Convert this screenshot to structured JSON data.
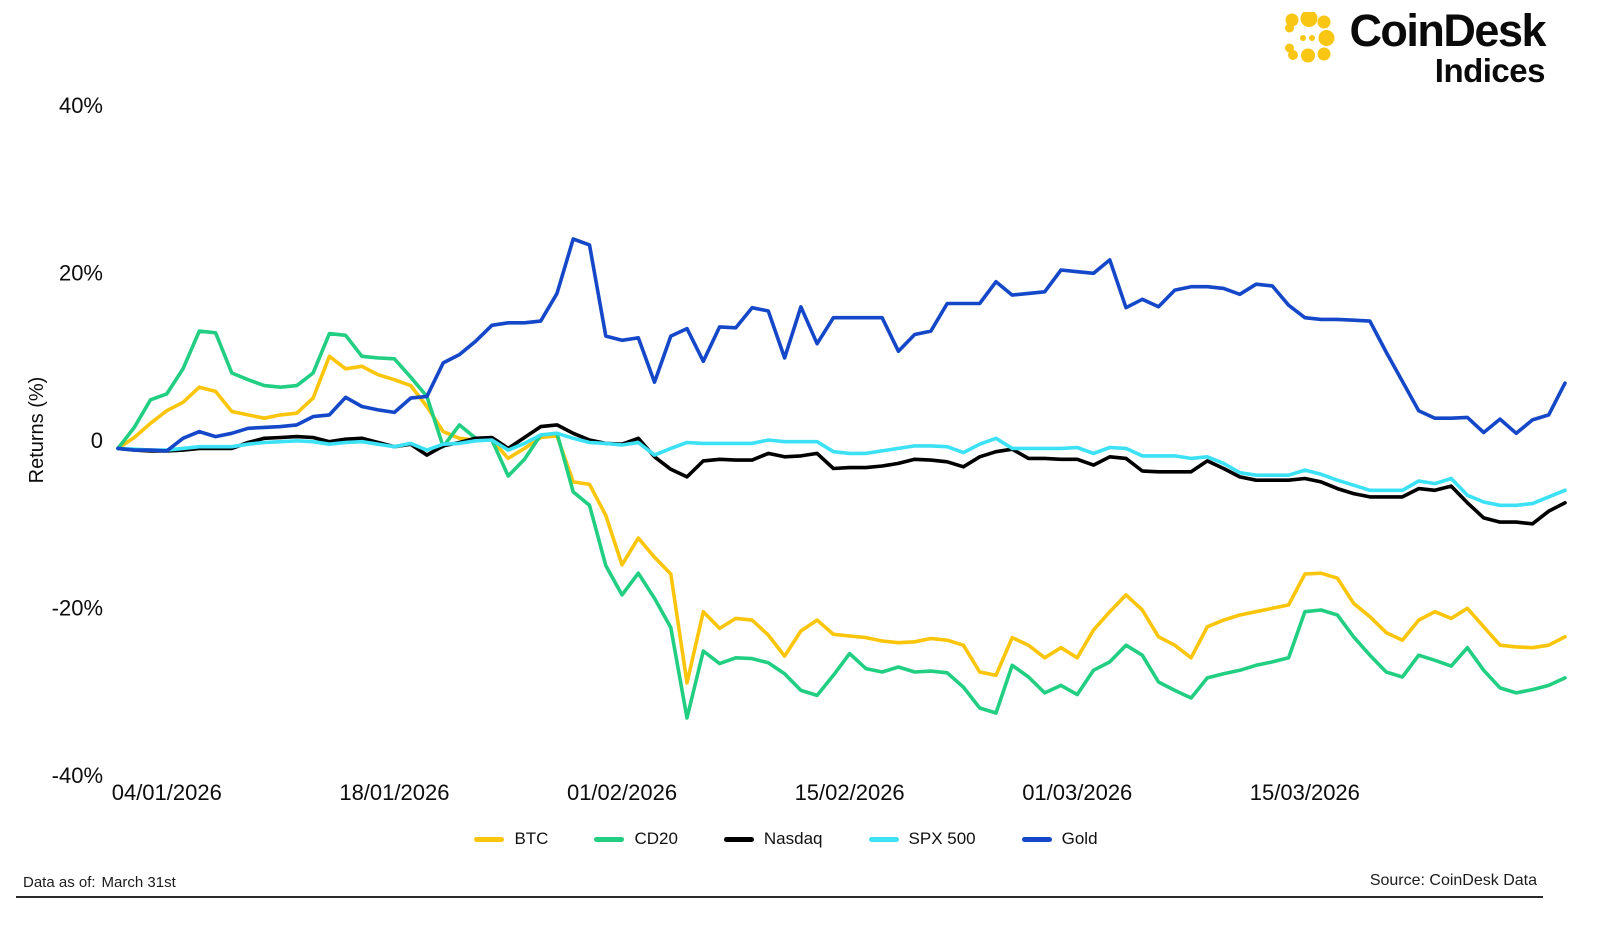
{
  "brand": {
    "name": "CoinDesk",
    "sub": "Indices",
    "logo_color": "#F8C613"
  },
  "footer": {
    "left_label": "Data as of:",
    "left_value": "March 31st",
    "right": "Source: CoinDesk Data"
  },
  "chart_data": {
    "type": "line",
    "title": "",
    "ylabel": "Returns (%)",
    "ylim": [
      -40,
      40
    ],
    "grid": false,
    "legend_position": "bottom",
    "x_start": "01/01/2026",
    "x_end": "31/03/2026",
    "frequency": "daily",
    "y_ticks": [
      {
        "label": "40%",
        "value": 40
      },
      {
        "label": "20%",
        "value": 20
      },
      {
        "label": "0",
        "value": 0
      },
      {
        "label": "-20%",
        "value": -20
      },
      {
        "label": "-40%",
        "value": -40
      }
    ],
    "x_ticks": [
      {
        "label": "04/01/2026",
        "day_index": 3
      },
      {
        "label": "18/01/2026",
        "day_index": 17
      },
      {
        "label": "01/02/2026",
        "day_index": 31
      },
      {
        "label": "15/02/2026",
        "day_index": 45
      },
      {
        "label": "01/03/2026",
        "day_index": 59
      },
      {
        "label": "15/03/2026",
        "day_index": 73
      }
    ],
    "series": [
      {
        "name": "BTC",
        "color": "#FBC50B",
        "values": [
          -1.0,
          0.3,
          2.0,
          3.5,
          4.5,
          6.3,
          5.8,
          3.4,
          3.0,
          2.6,
          3.0,
          3.2,
          5.0,
          10.0,
          8.5,
          8.8,
          7.8,
          7.2,
          6.5,
          4.0,
          1.0,
          0.2,
          0.0,
          0.0,
          -2.2,
          -1.0,
          0.3,
          0.5,
          -5.0,
          -5.3,
          -9.0,
          -14.9,
          -11.7,
          -14.0,
          -16.0,
          -29.0,
          -20.5,
          -22.5,
          -21.3,
          -21.5,
          -23.3,
          -25.8,
          -22.8,
          -21.5,
          -23.2,
          -23.4,
          -23.6,
          -24.0,
          -24.2,
          -24.1,
          -23.7,
          -23.9,
          -24.5,
          -27.7,
          -28.1,
          -23.6,
          -24.5,
          -26.0,
          -24.8,
          -26.0,
          -22.7,
          -20.5,
          -18.5,
          -20.3,
          -23.5,
          -24.5,
          -26.0,
          -22.3,
          -21.5,
          -20.9,
          -20.5,
          -20.1,
          -19.7,
          -16.0,
          -15.9,
          -16.5,
          -19.5,
          -21.1,
          -23.0,
          -23.9,
          -21.5,
          -20.5,
          -21.3,
          -20.1,
          -22.3,
          -24.5,
          -24.7,
          -24.8,
          -24.5,
          -23.5
        ]
      },
      {
        "name": "CD20",
        "color": "#21CE82",
        "values": [
          -1.0,
          1.5,
          4.8,
          5.5,
          8.5,
          13.0,
          12.8,
          8.0,
          7.2,
          6.5,
          6.3,
          6.5,
          8.0,
          12.7,
          12.5,
          10.0,
          9.8,
          9.7,
          7.5,
          5.2,
          -0.8,
          1.8,
          0.2,
          0.0,
          -4.3,
          -2.3,
          0.6,
          0.8,
          -6.2,
          -7.8,
          -15.0,
          -18.5,
          -15.9,
          -18.9,
          -22.4,
          -33.2,
          -25.2,
          -26.7,
          -26.0,
          -26.1,
          -26.6,
          -27.9,
          -29.9,
          -30.5,
          -28.1,
          -25.5,
          -27.3,
          -27.7,
          -27.1,
          -27.7,
          -27.6,
          -27.8,
          -29.5,
          -32.0,
          -32.6,
          -26.9,
          -28.3,
          -30.2,
          -29.3,
          -30.4,
          -27.5,
          -26.5,
          -24.5,
          -25.7,
          -28.9,
          -29.9,
          -30.8,
          -28.4,
          -27.9,
          -27.5,
          -26.9,
          -26.5,
          -26.0,
          -20.5,
          -20.3,
          -20.9,
          -23.5,
          -25.7,
          -27.7,
          -28.3,
          -25.7,
          -26.3,
          -27.0,
          -24.8,
          -27.5,
          -29.6,
          -30.2,
          -29.8,
          -29.3,
          -28.4
        ]
      },
      {
        "name": "Nasdaq",
        "color": "#000000",
        "values": [
          -1.0,
          -1.2,
          -1.3,
          -1.3,
          -1.2,
          -1.0,
          -1.0,
          -1.0,
          -0.3,
          0.2,
          0.3,
          0.4,
          0.3,
          -0.2,
          0.1,
          0.2,
          -0.3,
          -0.8,
          -0.5,
          -1.8,
          -0.7,
          -0.3,
          0.2,
          0.3,
          -1.0,
          0.3,
          1.6,
          1.8,
          0.8,
          0.0,
          -0.4,
          -0.5,
          0.2,
          -2.0,
          -3.5,
          -4.4,
          -2.5,
          -2.3,
          -2.4,
          -2.4,
          -1.6,
          -2.0,
          -1.9,
          -1.6,
          -3.4,
          -3.3,
          -3.3,
          -3.1,
          -2.8,
          -2.3,
          -2.4,
          -2.6,
          -3.2,
          -2.0,
          -1.4,
          -1.1,
          -2.2,
          -2.2,
          -2.3,
          -2.3,
          -3.0,
          -2.0,
          -2.2,
          -3.7,
          -3.8,
          -3.8,
          -3.8,
          -2.5,
          -3.4,
          -4.4,
          -4.8,
          -4.8,
          -4.8,
          -4.6,
          -5.0,
          -5.8,
          -6.4,
          -6.8,
          -6.8,
          -6.8,
          -5.8,
          -6.0,
          -5.5,
          -7.5,
          -9.3,
          -9.8,
          -9.8,
          -10.0,
          -8.5,
          -7.5
        ]
      },
      {
        "name": "SPX 500",
        "color": "#3CE1F5",
        "values": [
          -1.0,
          -1.1,
          -1.2,
          -1.2,
          -1.0,
          -0.8,
          -0.8,
          -0.8,
          -0.5,
          -0.3,
          -0.2,
          -0.1,
          -0.2,
          -0.5,
          -0.3,
          -0.2,
          -0.5,
          -0.8,
          -0.4,
          -1.2,
          -0.5,
          -0.4,
          -0.1,
          0.0,
          -1.2,
          -0.4,
          0.6,
          0.8,
          0.2,
          -0.3,
          -0.4,
          -0.6,
          -0.3,
          -1.8,
          -1.0,
          -0.3,
          -0.4,
          -0.4,
          -0.4,
          -0.4,
          0.0,
          -0.2,
          -0.2,
          -0.2,
          -1.4,
          -1.6,
          -1.6,
          -1.3,
          -1.0,
          -0.7,
          -0.7,
          -0.8,
          -1.5,
          -0.5,
          0.2,
          -1.0,
          -1.0,
          -1.0,
          -1.0,
          -0.9,
          -1.6,
          -0.9,
          -1.0,
          -1.9,
          -1.9,
          -1.9,
          -2.2,
          -2.0,
          -2.8,
          -3.9,
          -4.2,
          -4.2,
          -4.2,
          -3.6,
          -4.1,
          -4.8,
          -5.4,
          -6.0,
          -6.0,
          -6.0,
          -4.9,
          -5.2,
          -4.6,
          -6.6,
          -7.4,
          -7.8,
          -7.8,
          -7.6,
          -6.8,
          -6.0
        ]
      },
      {
        "name": "Gold",
        "color": "#1548C8",
        "values": [
          -1.0,
          -1.2,
          -1.2,
          -1.3,
          0.2,
          1.0,
          0.4,
          0.8,
          1.4,
          1.5,
          1.6,
          1.8,
          2.8,
          3.0,
          5.1,
          4.0,
          3.6,
          3.3,
          5.0,
          5.2,
          9.2,
          10.2,
          11.8,
          13.7,
          14.0,
          14.0,
          14.2,
          17.5,
          24.0,
          23.3,
          12.4,
          11.9,
          12.2,
          6.9,
          12.4,
          13.3,
          9.4,
          13.5,
          13.4,
          15.8,
          15.4,
          9.8,
          15.9,
          11.5,
          14.6,
          14.6,
          14.6,
          14.6,
          10.6,
          12.6,
          13.0,
          16.3,
          16.3,
          16.3,
          18.9,
          17.3,
          17.5,
          17.7,
          20.3,
          20.1,
          19.9,
          21.5,
          15.8,
          16.8,
          15.9,
          17.9,
          18.3,
          18.3,
          18.1,
          17.4,
          18.6,
          18.4,
          16.1,
          14.6,
          14.4,
          14.4,
          14.3,
          14.2,
          10.5,
          7.0,
          3.5,
          2.6,
          2.6,
          2.7,
          0.9,
          2.5,
          0.8,
          2.4,
          3.0,
          6.8
        ]
      }
    ]
  }
}
